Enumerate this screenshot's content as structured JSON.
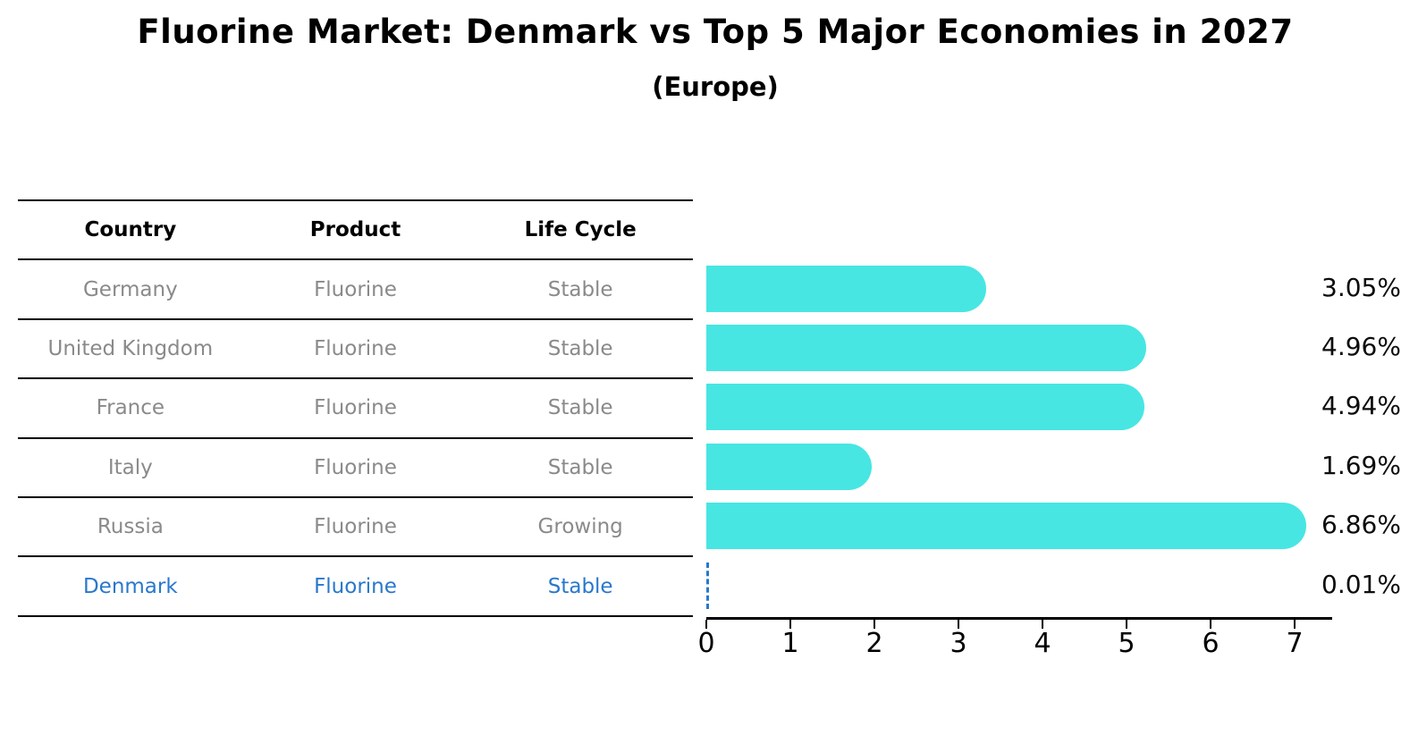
{
  "title": "Fluorine Market: Denmark vs Top 5 Major Economies in 2027",
  "subtitle": "(Europe)",
  "table": {
    "headers": [
      "Country",
      "Product",
      "Life Cycle"
    ],
    "rows": [
      {
        "country": "Germany",
        "product": "Fluorine",
        "life_cycle": "Stable",
        "highlight": false
      },
      {
        "country": "United Kingdom",
        "product": "Fluorine",
        "life_cycle": "Stable",
        "highlight": false
      },
      {
        "country": "France",
        "product": "Fluorine",
        "life_cycle": "Stable",
        "highlight": false
      },
      {
        "country": "Italy",
        "product": "Fluorine",
        "life_cycle": "Stable",
        "highlight": false
      },
      {
        "country": "Russia",
        "product": "Fluorine",
        "life_cycle": "Growing",
        "highlight": false
      },
      {
        "country": "Denmark",
        "product": "Fluorine",
        "life_cycle": "Stable",
        "highlight": true
      }
    ]
  },
  "chart_data": {
    "type": "bar",
    "orientation": "horizontal",
    "categories": [
      "Germany",
      "United Kingdom",
      "France",
      "Italy",
      "Russia",
      "Denmark"
    ],
    "values": [
      3.05,
      4.96,
      4.94,
      1.69,
      6.86,
      0.01
    ],
    "value_labels": [
      "3.05%",
      "4.96%",
      "4.94%",
      "1.69%",
      "6.86%",
      "0.01%"
    ],
    "x_ticks": [
      "0",
      "1",
      "2",
      "3",
      "4",
      "5",
      "6",
      "7"
    ],
    "xlim": [
      0,
      7.45
    ],
    "grid": false,
    "legend": "none",
    "bar_color": "#47E6E2",
    "highlight_index": 5,
    "highlight_style": "dashed-zero-line",
    "highlight_color": "#2878CC"
  },
  "colors": {
    "background": "#ffffff",
    "text_primary": "#000000",
    "text_muted": "#8a8a8a",
    "accent_blue": "#2878CC",
    "bar_cyan": "#47E6E2"
  }
}
